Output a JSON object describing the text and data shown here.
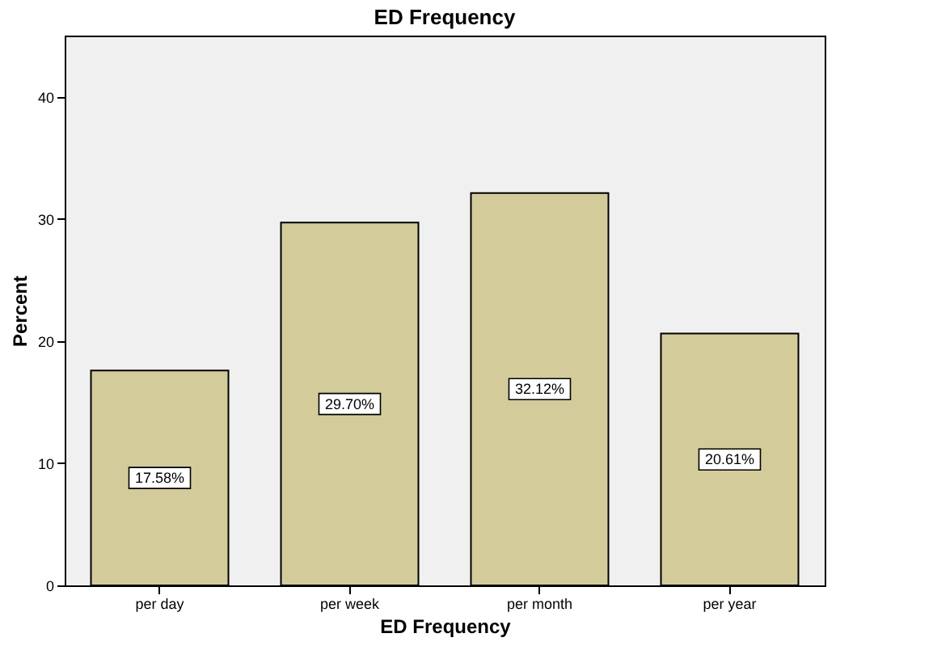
{
  "chart_data": {
    "type": "bar",
    "title": "ED Frequency",
    "xlabel": "ED Frequency",
    "ylabel": "Percent",
    "categories": [
      "per day",
      "per week",
      "per month",
      "per year"
    ],
    "values": [
      17.58,
      29.7,
      32.12,
      20.61
    ],
    "value_labels": [
      "17.58%",
      "29.70%",
      "32.12%",
      "20.61%"
    ],
    "color": "#d3cc9a",
    "ylim": [
      0,
      45
    ],
    "yticks": [
      0,
      10,
      20,
      30,
      40
    ],
    "grid": false
  }
}
